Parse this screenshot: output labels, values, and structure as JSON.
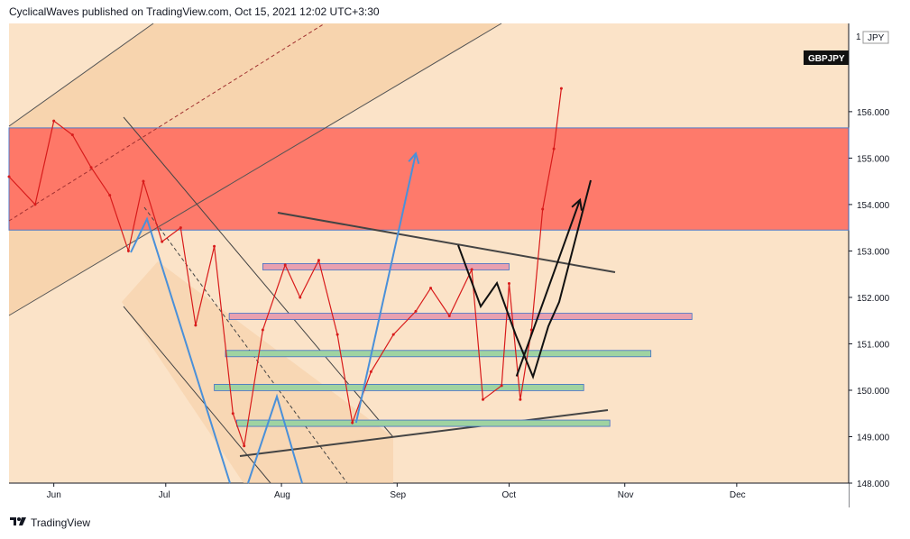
{
  "header": {
    "published_text": "CyclicalWaves published on TradingView.com, Oct 15, 2021 12:02 UTC+3:30"
  },
  "footer": {
    "brand": "TradingView",
    "logo_icon": "tradingview-logo-icon"
  },
  "colors": {
    "background": "#fbe3c8",
    "resistance_zone": "#ff6f61",
    "channel_fill": "#f6cfa6",
    "candle": "#d81b1b",
    "grid_bg": "#ffffff",
    "blue_arrow": "#4a90d9",
    "black_path": "#111111",
    "green_band": "#9fd3a1",
    "pink_band": "#e8a0b0"
  },
  "chart_data": {
    "type": "line",
    "title": "",
    "symbol_label": "GBPJPY",
    "currency_label": "JPY",
    "top_price_label": "1",
    "xlabel": "",
    "ylabel": "",
    "x_ticks": [
      "Jun",
      "Jul",
      "Aug",
      "Sep",
      "Oct",
      "Nov",
      "Dec"
    ],
    "y_ticks": [
      "148.000",
      "149.000",
      "150.000",
      "151.000",
      "152.000",
      "153.000",
      "154.000",
      "155.000",
      "156.000"
    ],
    "ylim": [
      148,
      157.9
    ],
    "grid": false,
    "x_domain": [
      "2021-05-20",
      "2021-12-31"
    ],
    "series": [
      {
        "x": [
          "2021-05-20",
          "2021-05-27",
          "2021-06-01",
          "2021-06-06",
          "2021-06-11",
          "2021-06-16",
          "2021-06-21",
          "2021-06-25",
          "2021-06-30",
          "2021-07-05",
          "2021-07-09",
          "2021-07-14",
          "2021-07-19",
          "2021-07-22",
          "2021-07-27",
          "2021-08-02",
          "2021-08-06",
          "2021-08-11",
          "2021-08-16",
          "2021-08-20",
          "2021-08-25",
          "2021-08-31",
          "2021-09-06",
          "2021-09-10",
          "2021-09-15",
          "2021-09-21",
          "2021-09-24",
          "2021-09-29",
          "2021-10-01",
          "2021-10-04",
          "2021-10-07",
          "2021-10-10",
          "2021-10-13",
          "2021-10-15"
        ],
        "values": [
          154.6,
          154.0,
          155.8,
          155.5,
          154.8,
          154.2,
          153.0,
          154.5,
          153.2,
          153.5,
          151.4,
          153.1,
          149.5,
          148.8,
          151.3,
          152.7,
          152.0,
          152.8,
          151.2,
          149.3,
          150.4,
          151.2,
          151.7,
          152.2,
          151.6,
          152.6,
          149.8,
          150.1,
          152.3,
          149.8,
          151.3,
          153.9,
          155.2,
          156.5
        ]
      }
    ],
    "zones": [
      {
        "kind": "resistance",
        "from": 153.45,
        "to": 155.65
      }
    ],
    "bands": [
      {
        "kind": "pink",
        "price": 152.65,
        "x_from": "2021-07-27",
        "x_to": "2021-10-01"
      },
      {
        "kind": "pink",
        "price": 151.58,
        "x_from": "2021-07-18",
        "x_to": "2021-11-19"
      },
      {
        "kind": "green",
        "price": 150.78,
        "x_from": "2021-07-17",
        "x_to": "2021-11-08"
      },
      {
        "kind": "green",
        "price": 150.05,
        "x_from": "2021-07-14",
        "x_to": "2021-10-21"
      },
      {
        "kind": "green",
        "price": 149.28,
        "x_from": "2021-07-20",
        "x_to": "2021-10-28"
      }
    ],
    "annotations": [
      {
        "kind": "target-arrow-icon",
        "color": "blue",
        "from": [
          "2021-08-21",
          149.3
        ],
        "to": [
          "2021-09-06",
          155.1
        ]
      },
      {
        "kind": "target-arrow-icon",
        "color": "black",
        "from": [
          "2021-10-03",
          150.3
        ],
        "to": [
          "2021-10-20",
          154.1
        ]
      }
    ]
  }
}
